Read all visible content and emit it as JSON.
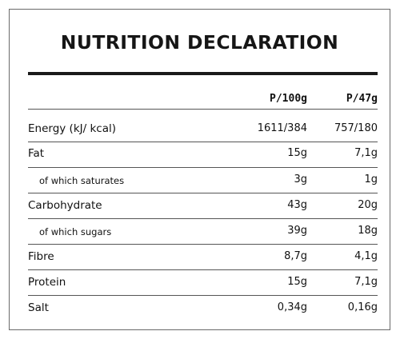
{
  "title": "NUTRITION DECLARATION",
  "headers": {
    "per100": "P/100g",
    "perServing": "P/47g"
  },
  "rows": [
    {
      "label": "Energy (kJ/ kcal)",
      "per100": "1611/384",
      "perServing": "757/180"
    },
    {
      "label": "Fat",
      "per100": "15g",
      "perServing": "7,1g"
    },
    {
      "label": "of which saturates",
      "per100": "3g",
      "perServing": "1g"
    },
    {
      "label": "Carbohydrate",
      "per100": "43g",
      "perServing": "20g"
    },
    {
      "label": "of which sugars",
      "per100": "39g",
      "perServing": "18g"
    },
    {
      "label": "Fibre",
      "per100": "8,7g",
      "perServing": "4,1g"
    },
    {
      "label": "Protein",
      "per100": "15g",
      "perServing": "7,1g"
    },
    {
      "label": "Salt",
      "per100": "0,34g",
      "perServing": "0,16g"
    }
  ]
}
